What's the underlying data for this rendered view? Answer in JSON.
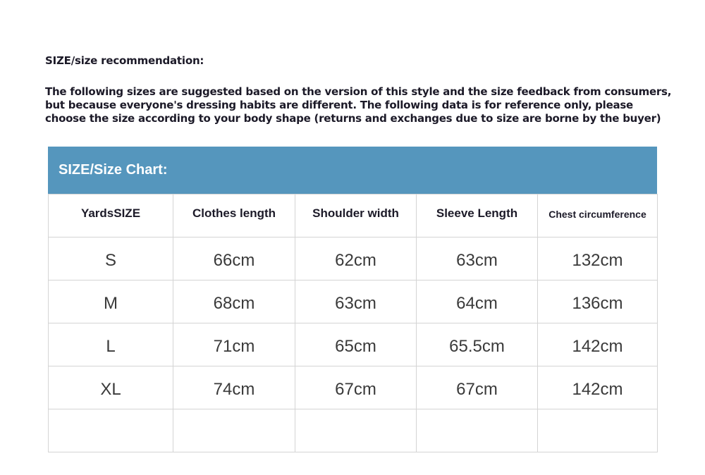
{
  "title": "SIZE/size recommendation:",
  "intro_lines": [
    "The following sizes are suggested based on the version of this style and the size feedback from consumers,",
    "but because everyone's dressing habits are different. The following data is for reference only, please",
    "choose the size according to your body shape (returns and exchanges due to size are borne by the buyer)"
  ],
  "chart": {
    "heading": "SIZE/Size Chart:",
    "header_color": "#5596bd",
    "columns": [
      "YardsSIZE",
      "Clothes length",
      "Shoulder width",
      "Sleeve Length",
      "Chest circumference"
    ],
    "rows": [
      [
        "S",
        "66cm",
        "62cm",
        "63cm",
        "132cm"
      ],
      [
        "M",
        "68cm",
        "63cm",
        "64cm",
        "136cm"
      ],
      [
        "L",
        "71cm",
        "65cm",
        "65.5cm",
        "142cm"
      ],
      [
        "XL",
        "74cm",
        "67cm",
        "67cm",
        "142cm"
      ],
      [
        "",
        "",
        "",
        "",
        ""
      ]
    ]
  }
}
